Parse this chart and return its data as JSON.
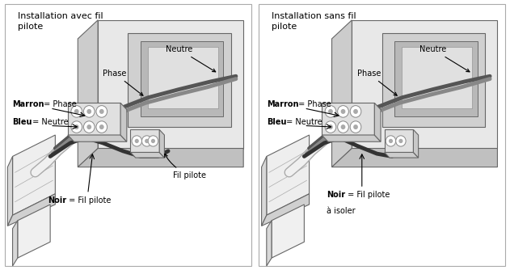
{
  "fig_width": 6.31,
  "fig_height": 3.34,
  "dpi": 100,
  "bg_color": "#ffffff",
  "border_color": "#aaaaaa",
  "divider_color": "#aaaaaa",
  "title_fontsize": 8.0,
  "label_fontsize": 7.0,
  "wall_face_color": "#e8e8e8",
  "wall_side_color": "#cccccc",
  "wall_bottom_color": "#c0c0c0",
  "wall_inner_color": "#f5f5f5",
  "wall_recess_color": "#d0d0d0",
  "socket_outer_color": "#555555",
  "socket_inner_color": "#888888",
  "terminal_face_color": "#e0e0e0",
  "terminal_side_color": "#cccccc",
  "screw_color": "#ffffff",
  "screw_edge": "#888888",
  "screw_dot": "#aaaaaa",
  "sheath_outer_color": "#e8e8e8",
  "sheath_inner_color": "#f5f5f5",
  "wire_brown_color": "#888888",
  "wire_blue_color": "#aaaaaa",
  "wire_black_color": "#333333",
  "radiator_face": "#e8e8e8",
  "radiator_side": "#d0d0d0",
  "radiator_line": "#888888",
  "arrow_color": "#000000",
  "text_color": "#000000",
  "line_width": 0.8,
  "left_title": "Installation avec fil\npilote",
  "right_title": "Installation sans fil\npilote",
  "label_neutre": "Neutre",
  "label_phase": "Phase",
  "label_marron": "Marron",
  "label_bleu": "Bleu",
  "label_fil_pilote": "Fil pilote",
  "label_noir": "Noir",
  "label_phase_eq": " = Phase",
  "label_neutre_eq": " = Neutre",
  "label_fil_pilote_eq": " = Fil pilote",
  "label_fil_pilote_isoler_eq": " = Fil pilote",
  "label_a_isoler": "à isoler"
}
